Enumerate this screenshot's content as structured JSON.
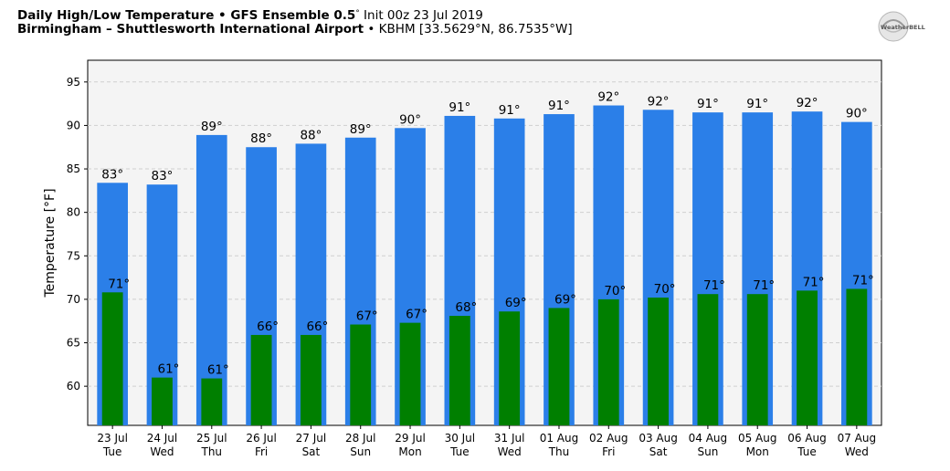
{
  "header": {
    "title_bold": "Daily High/Low Temperature • GFS Ensemble 0.5",
    "title_deg": "°",
    "title_init": " Init 00z 23 Jul 2019",
    "subtitle_bold": "Birmingham – Shuttlesworth International Airport",
    "subtitle_rest": " • KBHM [33.5629°N, 86.7535°W]"
  },
  "logo": {
    "icon": "weatherbell-logo",
    "text": "WeatherBELL"
  },
  "chart_data": {
    "type": "bar",
    "ylabel": "Temperature [°F]",
    "xlabel": "",
    "ylim": [
      55.5,
      97.5
    ],
    "yticks": [
      60,
      65,
      70,
      75,
      80,
      85,
      90,
      95
    ],
    "grid": true,
    "categories": [
      [
        "23 Jul",
        "Tue"
      ],
      [
        "24 Jul",
        "Wed"
      ],
      [
        "25 Jul",
        "Thu"
      ],
      [
        "26 Jul",
        "Fri"
      ],
      [
        "27 Jul",
        "Sat"
      ],
      [
        "28 Jul",
        "Sun"
      ],
      [
        "29 Jul",
        "Mon"
      ],
      [
        "30 Jul",
        "Tue"
      ],
      [
        "31 Jul",
        "Wed"
      ],
      [
        "01 Aug",
        "Thu"
      ],
      [
        "02 Aug",
        "Fri"
      ],
      [
        "03 Aug",
        "Sat"
      ],
      [
        "04 Aug",
        "Sun"
      ],
      [
        "05 Aug",
        "Mon"
      ],
      [
        "06 Aug",
        "Tue"
      ],
      [
        "07 Aug",
        "Wed"
      ]
    ],
    "series": [
      {
        "color": "#2b7fe8",
        "values": [
          83.4,
          83.2,
          88.9,
          87.5,
          87.9,
          88.6,
          89.7,
          91.1,
          90.8,
          91.3,
          92.3,
          91.8,
          91.5,
          91.5,
          91.6,
          90.4
        ],
        "labels": [
          "83°",
          "83°",
          "89°",
          "88°",
          "88°",
          "89°",
          "90°",
          "91°",
          "91°",
          "91°",
          "92°",
          "92°",
          "91°",
          "91°",
          "92°",
          "90°"
        ]
      },
      {
        "color": "#007f00",
        "values": [
          70.8,
          61.0,
          60.9,
          65.9,
          65.9,
          67.1,
          67.3,
          68.1,
          68.6,
          69.0,
          70.0,
          70.2,
          70.6,
          70.6,
          71.0,
          71.2
        ],
        "labels": [
          "71°",
          "61°",
          "61°",
          "66°",
          "66°",
          "67°",
          "67°",
          "68°",
          "69°",
          "69°",
          "70°",
          "70°",
          "71°",
          "71°",
          "71°",
          "71°"
        ]
      }
    ]
  }
}
